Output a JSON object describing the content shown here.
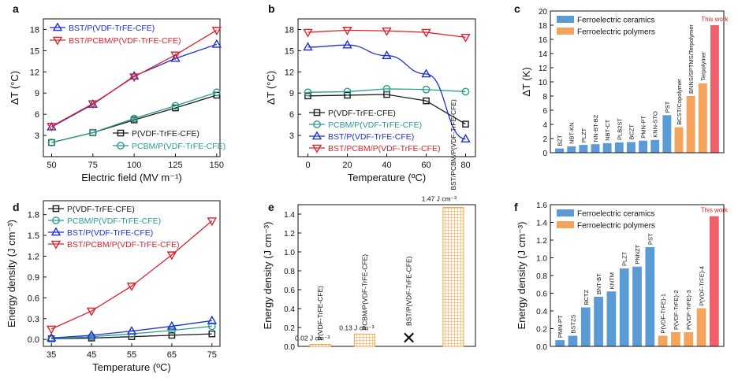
{
  "colors": {
    "black": "#1a1a1a",
    "teal": "#2a9d8f",
    "blue": "#1f2fd6",
    "red": "#e0222b",
    "ceramic": "#5b9bd5",
    "polymer": "#f4a45c",
    "thiswork": "#f0606a",
    "grid_orange": "#f0a040"
  },
  "chart_data": [
    {
      "panel": "a",
      "type": "line",
      "xlabel": "Electric field (MV m⁻¹)",
      "ylabel": "ΔT (°C)",
      "xlim": [
        45,
        152
      ],
      "ylim": [
        0,
        19.5
      ],
      "xticks": [
        50,
        75,
        100,
        125,
        150
      ],
      "yticks": [
        3,
        6,
        9,
        12,
        15,
        18
      ],
      "series": [
        {
          "name": "BST/P(VDF-TrFE-CFE)",
          "marker": "tri-up",
          "color": "blue",
          "x": [
            50,
            75,
            100,
            125,
            150
          ],
          "y": [
            4.2,
            7.4,
            11.4,
            13.9,
            15.9
          ]
        },
        {
          "name": "BST/PCBM/P(VDF-TrFE-CFE)",
          "marker": "tri-down",
          "color": "red",
          "x": [
            50,
            75,
            100,
            125,
            150
          ],
          "y": [
            4.3,
            7.5,
            11.3,
            14.4,
            17.9
          ]
        },
        {
          "name": "P(VDF-TrFE-CFE)",
          "marker": "square",
          "color": "black",
          "x": [
            50,
            75,
            100,
            125,
            150
          ],
          "y": [
            2.0,
            3.4,
            5.2,
            6.9,
            8.7
          ]
        },
        {
          "name": "PCBM/P(VDF-TrFE-CFE)",
          "marker": "circle",
          "color": "teal",
          "x": [
            50,
            75,
            100,
            125,
            150
          ],
          "y": [
            2.0,
            3.4,
            5.4,
            7.2,
            9.1
          ]
        }
      ],
      "legend_top": [
        "BST/P(VDF-TrFE-CFE)",
        "BST/PCBM/P(VDF-TrFE-CFE)"
      ],
      "legend_bottom": [
        "P(VDF-TrFE-CFE)",
        "PCBM/P(VDF-TrFE-CFE)"
      ]
    },
    {
      "panel": "b",
      "type": "line",
      "xlabel": "Temperature (ºC)",
      "ylabel": "ΔT (°C)",
      "xlim": [
        -5,
        85
      ],
      "ylim": [
        0,
        19.5
      ],
      "xticks": [
        0,
        20,
        40,
        60,
        80
      ],
      "yticks": [
        3,
        6,
        9,
        12,
        15,
        18
      ],
      "series": [
        {
          "name": "P(VDF-TrFE-CFE)",
          "marker": "square",
          "color": "black",
          "x": [
            0,
            20,
            40,
            60,
            80
          ],
          "y": [
            8.6,
            8.7,
            8.8,
            7.9,
            4.6
          ]
        },
        {
          "name": "PCBM/P(VDF-TrFE-CFE)",
          "marker": "circle",
          "color": "teal",
          "x": [
            0,
            20,
            40,
            60,
            80
          ],
          "y": [
            9.1,
            9.2,
            9.6,
            9.5,
            9.2
          ]
        },
        {
          "name": "BST/P(VDF-TrFE-CFE)",
          "marker": "tri-up",
          "color": "blue",
          "x": [
            0,
            20,
            40,
            60,
            80
          ],
          "y": [
            15.5,
            15.8,
            14.3,
            11.7,
            2.5
          ]
        },
        {
          "name": "BST/PCBM/P(VDF-TrFE-CFE)",
          "marker": "tri-down",
          "color": "red",
          "x": [
            0,
            20,
            40,
            60,
            80
          ],
          "y": [
            17.6,
            17.9,
            17.8,
            17.6,
            16.9
          ]
        }
      ]
    },
    {
      "panel": "c",
      "type": "bar",
      "ylabel": "ΔT (K)",
      "ylim": [
        0,
        20
      ],
      "yticks": [
        0,
        2,
        4,
        6,
        8,
        10,
        12,
        14,
        16,
        18,
        20
      ],
      "legend": [
        "Ferroelectric ceramics",
        "Ferroelectric polymers"
      ],
      "categories": [
        "BZT",
        "NBT-KN",
        "PLZT",
        "NN-BT-BZ",
        "NBT-CT",
        "PLB2ST",
        "BCZT",
        "PMN-PT",
        "KNN-STO",
        "PST",
        "BCST/Copolymer",
        "BNNS/SPTMS/Terpolymer",
        "Terpolymer",
        "This work"
      ],
      "values": [
        0.6,
        0.9,
        1.1,
        1.2,
        1.35,
        1.45,
        1.5,
        1.7,
        1.8,
        5.3,
        3.6,
        8.0,
        9.8,
        18.0
      ],
      "groups": [
        "ceramic",
        "ceramic",
        "ceramic",
        "ceramic",
        "ceramic",
        "ceramic",
        "ceramic",
        "ceramic",
        "ceramic",
        "ceramic",
        "polymer",
        "polymer",
        "polymer",
        "thiswork"
      ]
    },
    {
      "panel": "d",
      "type": "line",
      "xlabel": "Temperature (ºC)",
      "ylabel": "Energy density (J cm⁻³)",
      "xlim": [
        33,
        77
      ],
      "ylim": [
        -0.1,
        2.0
      ],
      "xticks": [
        35,
        45,
        55,
        65,
        75
      ],
      "yticks": [
        0.0,
        0.3,
        0.6,
        0.9,
        1.2,
        1.5,
        1.8
      ],
      "series": [
        {
          "name": "P(VDF-TrFE-CFE)",
          "marker": "square",
          "color": "black",
          "x": [
            35,
            45,
            55,
            65,
            75
          ],
          "y": [
            0.01,
            0.02,
            0.04,
            0.06,
            0.08
          ]
        },
        {
          "name": "PCBM/P(VDF-TrFE-CFE)",
          "marker": "circle",
          "color": "teal",
          "x": [
            35,
            45,
            55,
            65,
            75
          ],
          "y": [
            0.01,
            0.04,
            0.08,
            0.13,
            0.19
          ]
        },
        {
          "name": "BST/P(VDF-TrFE-CFE)",
          "marker": "tri-up",
          "color": "blue",
          "x": [
            35,
            45,
            55,
            65,
            75
          ],
          "y": [
            0.02,
            0.06,
            0.12,
            0.19,
            0.27
          ]
        },
        {
          "name": "BST/PCBM/P(VDF-TrFE-CFE)",
          "marker": "tri-down",
          "color": "red",
          "x": [
            35,
            45,
            55,
            65,
            75
          ],
          "y": [
            0.15,
            0.41,
            0.77,
            1.22,
            1.71
          ]
        }
      ]
    },
    {
      "panel": "e",
      "type": "bar",
      "ylabel": "Energy density (J cm⁻³)",
      "ylim": [
        0,
        1.5
      ],
      "yticks": [
        0.0,
        0.2,
        0.4,
        0.6,
        0.8,
        1.0,
        1.2,
        1.4
      ],
      "categories": [
        "P(VDF-TrFE-CFE)",
        "PCBM/P(VDF-TrFE-CFE)",
        "BST/P(VDF-TrFE-CFE)",
        "BST/PCBM/P(VDF-TrFE-CFE)"
      ],
      "values": [
        0.02,
        0.13,
        0.0,
        1.47
      ],
      "value_labels": [
        "0.02 J cm⁻³",
        "0.13 J cm⁻³",
        "",
        "1.47 J cm⁻³"
      ],
      "missing_marker": "✕"
    },
    {
      "panel": "f",
      "type": "bar",
      "ylabel": "Energy density (J cm⁻³)",
      "ylim": [
        0,
        1.6
      ],
      "yticks": [
        0.0,
        0.2,
        0.4,
        0.6,
        0.8,
        1.0,
        1.2,
        1.4,
        1.6
      ],
      "legend": [
        "Ferroelectric ceramics",
        "Ferroelectric polymers"
      ],
      "categories": [
        "PMN-PT",
        "BSTZS",
        "BCTZ",
        "BNT-BT",
        "KNTM",
        "PLZT",
        "PNNZT",
        "PST",
        "P(VDF-TrFE)-1",
        "P(VDF-TrFE)-2",
        "P(VDF-TrFE)-3",
        "P(VDF-TrFE)-4",
        "This work"
      ],
      "values": [
        0.07,
        0.12,
        0.44,
        0.56,
        0.62,
        0.88,
        0.9,
        1.12,
        0.12,
        0.16,
        0.16,
        0.43,
        1.47
      ],
      "groups": [
        "ceramic",
        "ceramic",
        "ceramic",
        "ceramic",
        "ceramic",
        "ceramic",
        "ceramic",
        "ceramic",
        "polymer",
        "polymer",
        "polymer",
        "polymer",
        "thiswork"
      ]
    }
  ]
}
